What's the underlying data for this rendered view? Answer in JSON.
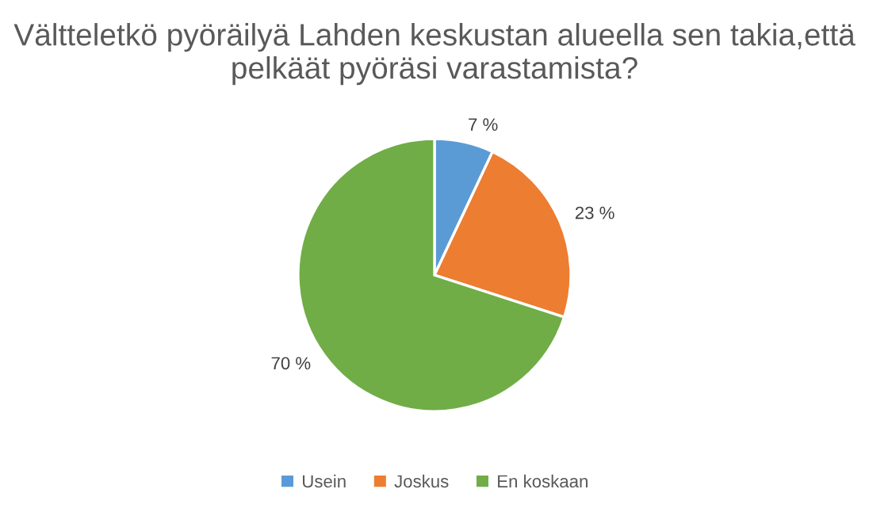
{
  "chart_data": {
    "type": "pie",
    "title": "Vältteletkö pyöräilyä Lahden keskustan alueella sen takia,että pelkäät pyöräsi varastamista?",
    "categories": [
      "Usein",
      "Joskus",
      "En koskaan"
    ],
    "values": [
      7,
      23,
      70
    ],
    "colors": [
      "#5b9bd5",
      "#ed7d31",
      "#70ad47"
    ],
    "value_labels": [
      "7 %",
      "23 %",
      "70 %"
    ],
    "legend": "bottom"
  }
}
